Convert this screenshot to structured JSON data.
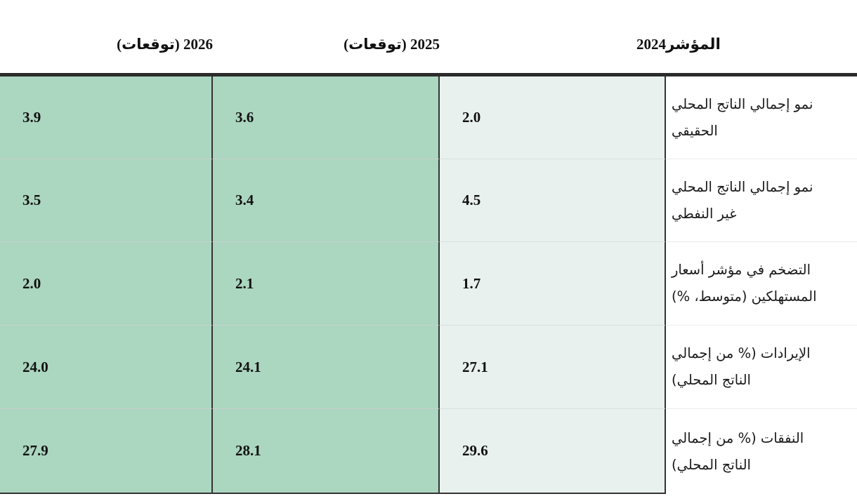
{
  "colors": {
    "forecast_fill": "#abd6c0",
    "actual_fill": "#e8f1ed",
    "header_rule": "#2b2b2b",
    "column_divider": "#333333"
  },
  "table": {
    "headers": {
      "indicator": "المؤشر",
      "y2024": "2024",
      "y2025": "2025 (توقعات)",
      "y2026": "2026 (توقعات)"
    },
    "rows": [
      {
        "label": "نمو إجمالي الناتج المحلي الحقيقي",
        "label_lines": [
          "نمو إجمالي الناتج المحلي",
          "الحقيقي"
        ],
        "v2024": "2.0",
        "v2025": "3.6",
        "v2026": "3.9"
      },
      {
        "label": "نمو إجمالي الناتج المحلي غير النفطي",
        "label_lines": [
          "نمو إجمالي الناتج المحلي",
          "غير النفطي"
        ],
        "v2024": "4.5",
        "v2025": "3.4",
        "v2026": "3.5"
      },
      {
        "label": "التضخم في مؤشر أسعار المستهلكين (متوسط، %)",
        "label_lines": [
          "التضخم في مؤشر أسعار",
          "المستهلكين (متوسط، %)"
        ],
        "v2024": "1.7",
        "v2025": "2.1",
        "v2026": "2.0"
      },
      {
        "label": "الإيرادات (% من إجمالي الناتج المحلي)",
        "label_lines": [
          "الإيرادات (% من إجمالي",
          "الناتج المحلي)"
        ],
        "v2024": "27.1",
        "v2025": "24.1",
        "v2026": "24.0"
      },
      {
        "label": "النفقات (% من إجمالي الناتج المحلي)",
        "label_lines": [
          "النفقات (% من إجمالي",
          "الناتج المحلي)"
        ],
        "v2024": "29.6",
        "v2025": "28.1",
        "v2026": "27.9"
      }
    ]
  },
  "chart_data": {
    "type": "table",
    "title": "",
    "columns": [
      "المؤشر",
      "2024",
      "2025 (توقعات)",
      "2026 (توقعات)"
    ],
    "rows": [
      {
        "indicator": "نمو إجمالي الناتج المحلي الحقيقي",
        "y2024": 2.0,
        "y2025": 3.6,
        "y2026": 3.9
      },
      {
        "indicator": "نمو إجمالي الناتج المحلي غير النفطي",
        "y2024": 4.5,
        "y2025": 3.4,
        "y2026": 3.5
      },
      {
        "indicator": "التضخم في مؤشر أسعار المستهلكين (متوسط، %)",
        "y2024": 1.7,
        "y2025": 2.1,
        "y2026": 2.0
      },
      {
        "indicator": "الإيرادات (% من إجمالي الناتج المحلي)",
        "y2024": 27.1,
        "y2025": 24.1,
        "y2026": 24.0
      },
      {
        "indicator": "النفقات (% من إجمالي الناتج المحلي)",
        "y2024": 29.6,
        "y2025": 28.1,
        "y2026": 27.9
      }
    ],
    "layout_hints": {
      "direction": "rtl",
      "actual_column_fill": "#e8f1ed",
      "forecast_columns_fill": "#abd6c0",
      "header_rule_color": "#2b2b2b"
    }
  }
}
